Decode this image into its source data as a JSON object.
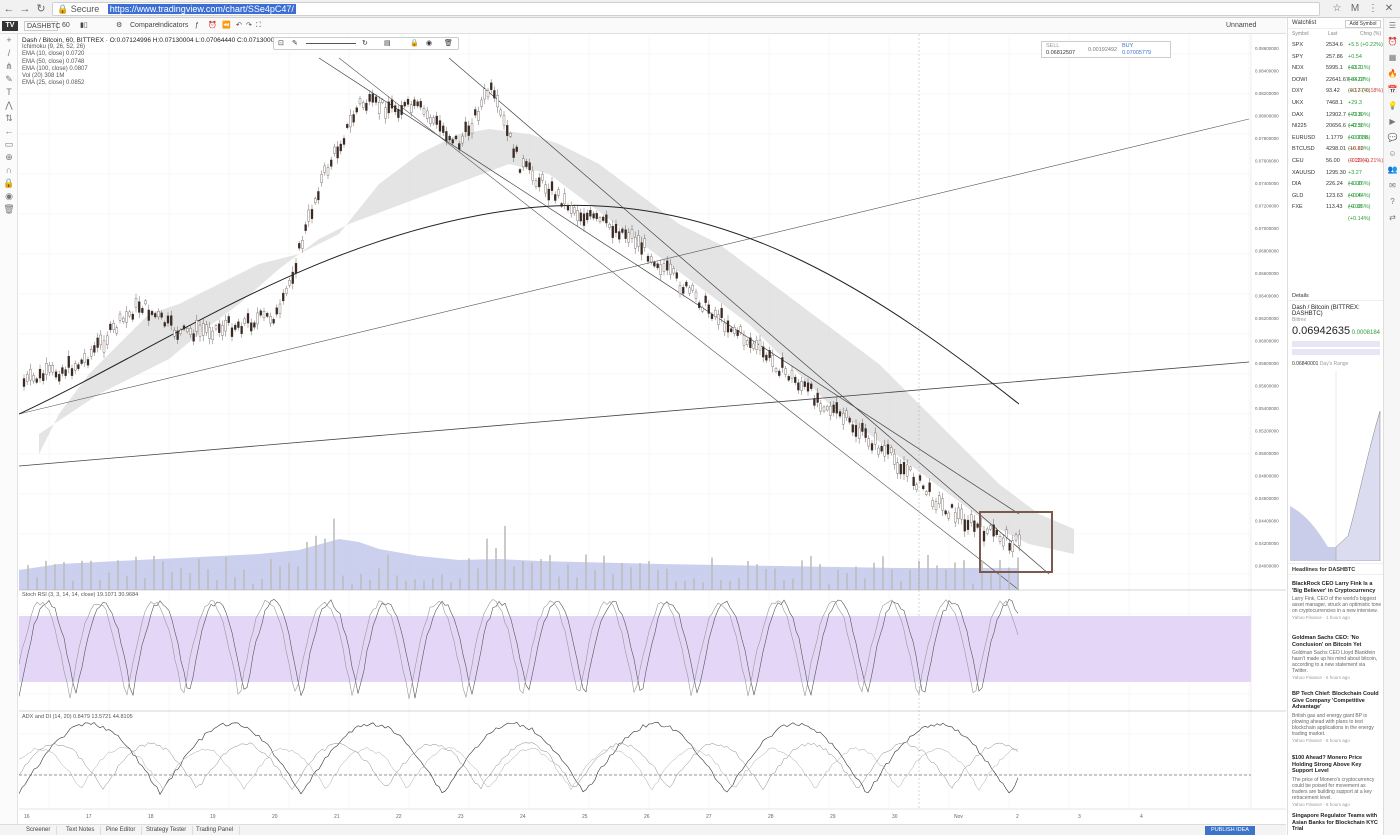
{
  "browser": {
    "secure_label": "Secure",
    "url": "https://www.tradingview.com/chart/SSe4pC47/",
    "back_icon": "←",
    "forward_icon": "→",
    "reload_icon": "↻"
  },
  "toolbar": {
    "symbol": "DASHBTC",
    "interval": "60",
    "compare_label": "Compare",
    "indicators_label": "Indicators",
    "unnamed_label": "Unnamed"
  },
  "legend": {
    "main": "Dash / Bitcoin, 60, BITTREX · O:0.07124996 H:0.07130004 L:0.07064440 C:0.07130004",
    "lines": [
      "Ichimoku (9, 26, 52, 26)",
      "EMA (10, close)  0.0720",
      "EMA (50, close)  0.0748",
      "EMA (100, close)  0.0807",
      "Vol (20)  308  1M",
      "EMA (25, close)  0.0852"
    ]
  },
  "trade": {
    "sell_label": "SELL",
    "sell_value": "0.06812507",
    "spread": "0.00192492",
    "buy_label": "BUY",
    "buy_value": "0.07005779"
  },
  "panels": {
    "stoch_title": "Stoch RSI (3, 3, 14, 14, close)  19.1071  30.9684",
    "adx_title": "ADX and DI (14, 20)  0.8479  13.5721  44.8105"
  },
  "price_axis": [
    "0.08600000",
    "0.08400000",
    "0.08200000",
    "0.08000000",
    "0.07800000",
    "0.07600000",
    "0.07400000",
    "0.07200000",
    "0.07000000",
    "0.06800000",
    "0.06600000",
    "0.06400000",
    "0.06200000",
    "0.06000000",
    "0.05800000",
    "0.05600000",
    "0.05400000",
    "0.05200000",
    "0.05000000",
    "0.04800000",
    "0.04600000",
    "0.04400000",
    "0.04200000",
    "0.04000000"
  ],
  "time_axis": [
    "16",
    "17",
    "18",
    "19",
    "20",
    "21",
    "22",
    "23",
    "24",
    "25",
    "26",
    "27",
    "28",
    "29",
    "30",
    "Nov",
    "2",
    "3",
    "4"
  ],
  "bottom_tabs": [
    "Screener",
    "Text Notes",
    "Pine Editor",
    "Strategy Tester",
    "Trading Panel"
  ],
  "publish_label": "PUBLISH IDEA",
  "watchlist": {
    "title": "Watchlist",
    "add_label": "Add Symbol",
    "cols": [
      "Symbol",
      "Last",
      "Chng (%)"
    ],
    "rows": [
      {
        "s": "SPX",
        "l": "2534.6",
        "c": "+5.5 (+0.22%)",
        "up": true
      },
      {
        "s": "SPY",
        "l": "257.86",
        "c": "+0.54 (+0.21%)",
        "up": true
      },
      {
        "s": "NDX",
        "l": "5995.1",
        "c": "+13.1 (+0.22%)",
        "up": true
      },
      {
        "s": "DOWI",
        "l": "22641.67",
        "c": "+84.07 (+0.37%)",
        "up": true
      },
      {
        "s": "DXY",
        "l": "93.42",
        "c": "-0.17 (-0.18%)",
        "up": false
      },
      {
        "s": "UKX",
        "l": "7468.1",
        "c": "+29.3 (+0.39%)",
        "up": true
      },
      {
        "s": "DAX",
        "l": "12902.7",
        "c": "+73.8 (+0.58%)",
        "up": true
      },
      {
        "s": "NI225",
        "l": "20656.6",
        "c": "+42.5 (+0.21%)",
        "up": true
      },
      {
        "s": "EURUSD",
        "l": "1.1779",
        "c": "+0.0038 (+0.29%)",
        "up": true
      },
      {
        "s": "BTCUSD",
        "l": "4298.01",
        "c": "-16.82 (-0.39%)",
        "up": false
      },
      {
        "s": "CEU",
        "l": "56.00",
        "c": "-0.12 (-0.21%)",
        "up": false
      },
      {
        "s": "XAUUSD",
        "l": "1295.30",
        "c": "+3.27 (+0.26%)",
        "up": true
      },
      {
        "s": "DIA",
        "l": "226.24",
        "c": "+1.00 (+0.44%)",
        "up": true
      },
      {
        "s": "GLD",
        "l": "123.63",
        "c": "+0.06 (+0.05%)",
        "up": true
      },
      {
        "s": "FXE",
        "l": "113.43",
        "c": "+0.16 (+0.14%)",
        "up": true
      }
    ]
  },
  "details": {
    "title": "Details",
    "name": "Dash / Bitcoin",
    "exchange": "(BITTREX: DASHBTC)",
    "sub": "Bittrex",
    "price": "0.06942635",
    "change": "0.0008184",
    "low": "0.06840001",
    "range_label": "Day's Range"
  },
  "news": {
    "title": "Headlines for DASHBTC",
    "items": [
      {
        "h": "BlackRock CEO Larry Fink Is a 'Big Believer' in Cryptocurrency",
        "b": "Larry Fink, CEO of the world's biggest asset manager, struck an optimistic tone on cryptocurrencies in a new interview.",
        "m": "Yahoo Finance · 1 hours ago"
      },
      {
        "h": "Goldman Sachs CEO: 'No Conclusion' on Bitcoin Yet",
        "b": "Goldman Sachs CEO Lloyd Blankfein hasn't made up his mind about bitcoin, according to a new statement via Twitter.",
        "m": "Yahoo Finance · 5 hours ago"
      },
      {
        "h": "BP Tech Chief: Blockchain Could Give Company 'Competitive Advantage'",
        "b": "British gas and energy giant BP is plowing ahead with plans to test blockchain applications in the energy trading market.",
        "m": "Yahoo Finance · 5 hours ago"
      },
      {
        "h": "$100 Ahead? Monero Price Holding Strong Above Key Support Level",
        "b": "The price of Monero's cryptocurrency could be poised for movement as traders are building support at a key retracement level.",
        "m": "Yahoo Finance · 6 hours ago"
      },
      {
        "h": "Singapore Regulator Teams with Asian Banks for Blockchain KYC Trial",
        "b": "",
        "m": ""
      }
    ]
  },
  "colors": {
    "accent": "#3c74c8",
    "cloud": "#c8c8c8",
    "stoch_band": "#e3d6f7",
    "volume": "#b9c0e8",
    "box": "#7a5a4f"
  }
}
